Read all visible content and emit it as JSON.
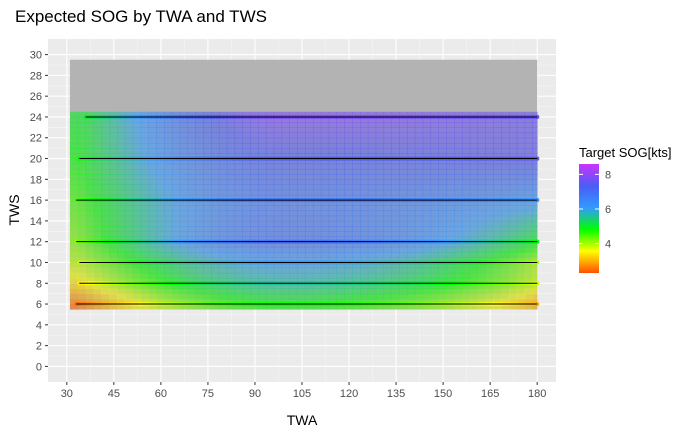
{
  "chart_data": {
    "type": "heatmap",
    "title": "Expected SOG by TWA and TWS",
    "xlabel": "TWA",
    "ylabel": "TWS",
    "xlim": [
      24,
      186
    ],
    "ylim": [
      -1.5,
      31.5
    ],
    "x_ticks": [
      30,
      45,
      60,
      75,
      90,
      105,
      120,
      135,
      150,
      165,
      180
    ],
    "y_ticks": [
      0,
      2,
      4,
      6,
      8,
      10,
      12,
      14,
      16,
      18,
      20,
      22,
      24,
      26,
      28,
      30
    ],
    "grid": true,
    "background_region": {
      "twa": [
        31,
        180
      ],
      "tws": [
        5.5,
        29.5
      ],
      "color": "#b3b3b3"
    },
    "surface_range": {
      "twa": [
        31,
        180
      ],
      "tws": [
        5.5,
        24.5
      ]
    },
    "colorscale": {
      "title": "Target SOG[kts]",
      "min": 2.3,
      "max": 8.6,
      "ticks": [
        4,
        6,
        8
      ],
      "colors": [
        "#ff5000",
        "#ffff00",
        "#00ff00",
        "#3399ff",
        "#4b5cf5",
        "#cc33ff"
      ]
    },
    "series": [
      {
        "tws": 6,
        "twa_start": 33,
        "twa_end": 180,
        "min_sog": 2.5,
        "mid_sog": 4.8,
        "end_sog": 3.0
      },
      {
        "tws": 8,
        "twa_start": 34,
        "twa_end": 180,
        "min_sog": 3.4,
        "mid_sog": 5.6,
        "end_sog": 3.8
      },
      {
        "tws": 10,
        "twa_start": 34,
        "twa_end": 180,
        "min_sog": 3.9,
        "mid_sog": 6.1,
        "end_sog": 4.0
      },
      {
        "tws": 12,
        "twa_start": 33,
        "twa_end": 180,
        "min_sog": 4.2,
        "mid_sog": 6.9,
        "end_sog": 4.9
      },
      {
        "tws": 16,
        "twa_start": 33,
        "twa_end": 180,
        "min_sog": 4.5,
        "mid_sog": 6.8,
        "end_sog": 6.2
      },
      {
        "tws": 20,
        "twa_start": 34,
        "twa_end": 180,
        "min_sog": 4.8,
        "mid_sog": 7.3,
        "end_sog": 7.5
      },
      {
        "tws": 24,
        "twa_start": 36,
        "twa_end": 180,
        "min_sog": 5.0,
        "mid_sog": 7.8,
        "end_sog": 7.6
      }
    ]
  }
}
